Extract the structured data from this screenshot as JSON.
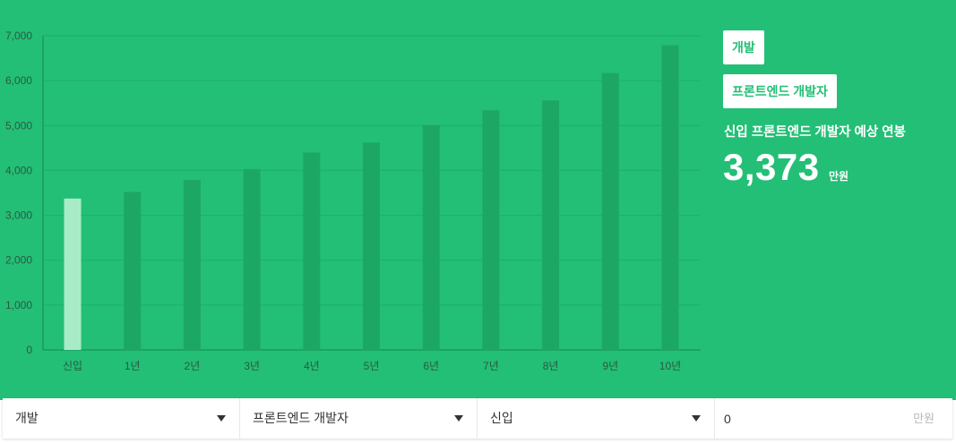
{
  "chips": {
    "job": "개발",
    "position": "프론트엔드 개발자"
  },
  "salary": {
    "title": "신입 프론트엔드 개발자 예상 연봉",
    "value": "3,373",
    "unit": "만원"
  },
  "filters": {
    "job": "개발",
    "position": "프론트엔드 개발자",
    "experience": "신입",
    "current_salary_value": "0",
    "current_salary_unit": "만원"
  },
  "colors": {
    "background": "#23bf76",
    "bar": "#1da765",
    "bar_active": "#a7ecc7",
    "chip_text": "#23bf76"
  },
  "chart_data": {
    "type": "bar",
    "categories": [
      "신입",
      "1년",
      "2년",
      "3년",
      "4년",
      "5년",
      "6년",
      "7년",
      "8년",
      "9년",
      "10년"
    ],
    "values": [
      3373,
      3520,
      3790,
      4030,
      4400,
      4620,
      5010,
      5340,
      5560,
      6170,
      6790
    ],
    "highlight_index": 0,
    "ylim": [
      0,
      7000
    ],
    "yticks": [
      0,
      1000,
      2000,
      3000,
      4000,
      5000,
      6000,
      7000
    ],
    "ytick_labels": [
      "0",
      "1,000",
      "2,000",
      "3,000",
      "4,000",
      "5,000",
      "6,000",
      "7,000"
    ],
    "grid": true
  }
}
